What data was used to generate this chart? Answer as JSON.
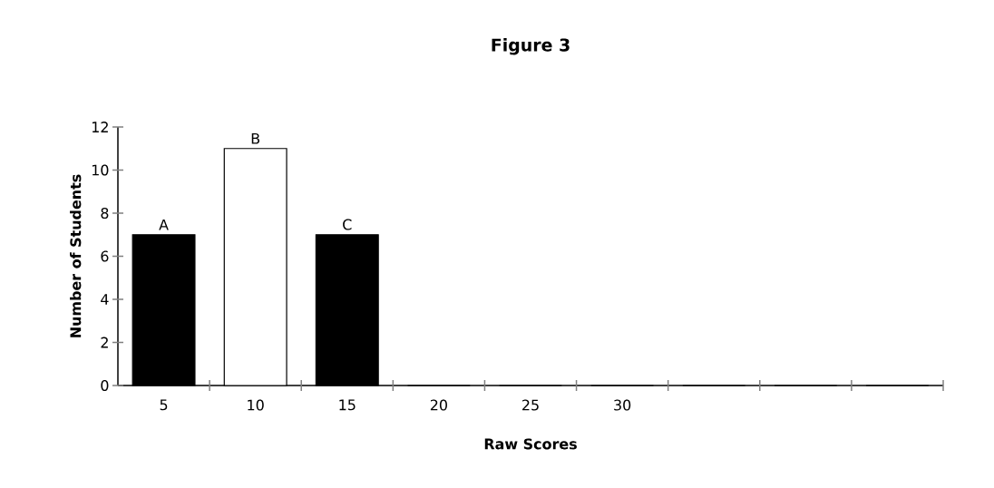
{
  "chart_data": {
    "type": "bar",
    "title": "Figure 3",
    "xlabel": "Raw Scores",
    "ylabel": "Number of Students",
    "categories": [
      "5",
      "10",
      "15",
      "20",
      "25",
      "30",
      null,
      null,
      null
    ],
    "values": [
      7,
      11,
      7,
      0,
      0,
      0,
      0,
      0,
      0
    ],
    "colors": [
      "#000000",
      "#ffffff",
      "#000000",
      "#000000",
      "#000000",
      "#000000",
      "#000000",
      "#000000",
      "#000000"
    ],
    "ylim": [
      0,
      12
    ],
    "yticks": [
      0,
      2,
      4,
      6,
      8,
      10,
      12
    ],
    "annotations": [
      {
        "text": "A",
        "x": "5",
        "y": 7
      },
      {
        "text": "B",
        "x": "10",
        "y": 11
      },
      {
        "text": "C",
        "x": "15",
        "y": 7
      }
    ]
  }
}
